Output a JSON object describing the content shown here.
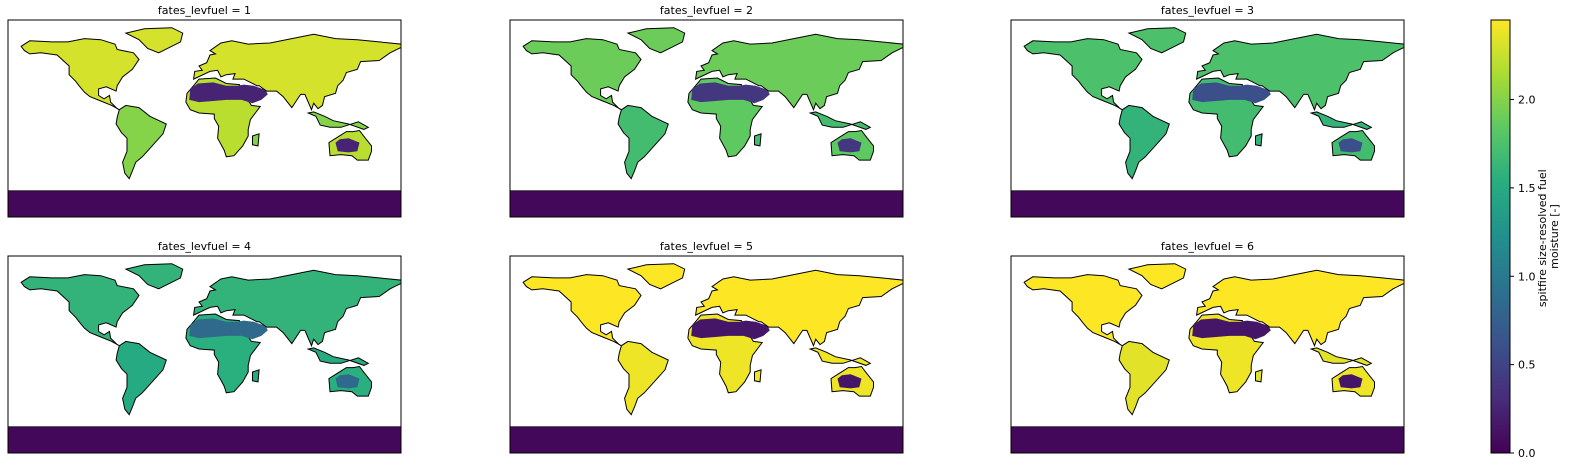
{
  "chart_data": {
    "type": "heatmap",
    "facet_variable": "fates_levfuel",
    "panels": [
      {
        "title": "fates_levfuel = 1",
        "land_value": 2.2,
        "tropics_value": 2.0,
        "arid_value": 0.25,
        "boreal_value": 2.3,
        "antarctica_value": 0.05
      },
      {
        "title": "fates_levfuel = 2",
        "land_value": 1.85,
        "tropics_value": 1.7,
        "arid_value": 0.4,
        "boreal_value": 1.9,
        "antarctica_value": 0.05
      },
      {
        "title": "fates_levfuel = 3",
        "land_value": 1.7,
        "tropics_value": 1.6,
        "arid_value": 0.6,
        "boreal_value": 1.75,
        "antarctica_value": 0.05
      },
      {
        "title": "fates_levfuel = 4",
        "land_value": 1.55,
        "tropics_value": 1.5,
        "arid_value": 0.85,
        "boreal_value": 1.6,
        "antarctica_value": 0.05
      },
      {
        "title": "fates_levfuel = 5",
        "land_value": 2.4,
        "tropics_value": 2.4,
        "arid_value": 0.15,
        "boreal_value": 2.45,
        "antarctica_value": 0.05
      },
      {
        "title": "fates_levfuel = 6",
        "land_value": 2.4,
        "tropics_value": 2.35,
        "arid_value": 0.15,
        "boreal_value": 2.45,
        "antarctica_value": 0.05
      }
    ],
    "colorbar": {
      "label_line1": "spitfire size-resolved fuel",
      "label_line2": "moisture [-]",
      "colormap": "viridis",
      "vmin": 0.0,
      "vmax": 2.45,
      "ticks": [
        {
          "value": 0.0,
          "label": "0.0"
        },
        {
          "value": 0.5,
          "label": "0.5"
        },
        {
          "value": 1.0,
          "label": "1.0"
        },
        {
          "value": 1.5,
          "label": "1.5"
        },
        {
          "value": 2.0,
          "label": "2.0"
        }
      ]
    }
  }
}
